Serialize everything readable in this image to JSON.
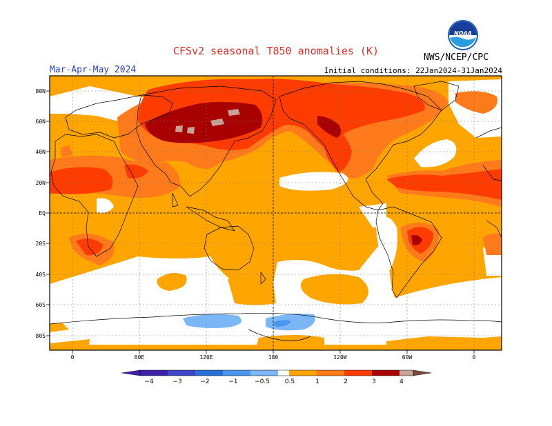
{
  "header": {
    "title": "CFSv2 seasonal T850 anomalies (K)",
    "season": "Mar-Apr-May 2024",
    "initial_conditions": "Initial conditions: 22Jan2024-31Jan2024",
    "org": "NWS/NCEP/CPC",
    "logo_text": "NOAA"
  },
  "axes": {
    "lat_labels": [
      "80N",
      "60N",
      "40N",
      "20N",
      "EQ",
      "20S",
      "40S",
      "60S",
      "80S"
    ],
    "lon_labels": [
      "0",
      "60E",
      "120E",
      "180",
      "120W",
      "60W",
      "0"
    ]
  },
  "colorbar": {
    "labels": [
      "−4",
      "−3",
      "−2",
      "−1",
      "−0.5",
      "0.5",
      "1",
      "2",
      "3",
      "4"
    ],
    "colors": [
      "#3d1fa8",
      "#3f46c8",
      "#2a6fd8",
      "#4a95ee",
      "#7bb6f6",
      "#ffffff",
      "#ffa500",
      "#ff7a1a",
      "#ff3c00",
      "#a80000",
      "#c7a296",
      "#7a4a3e"
    ]
  }
}
